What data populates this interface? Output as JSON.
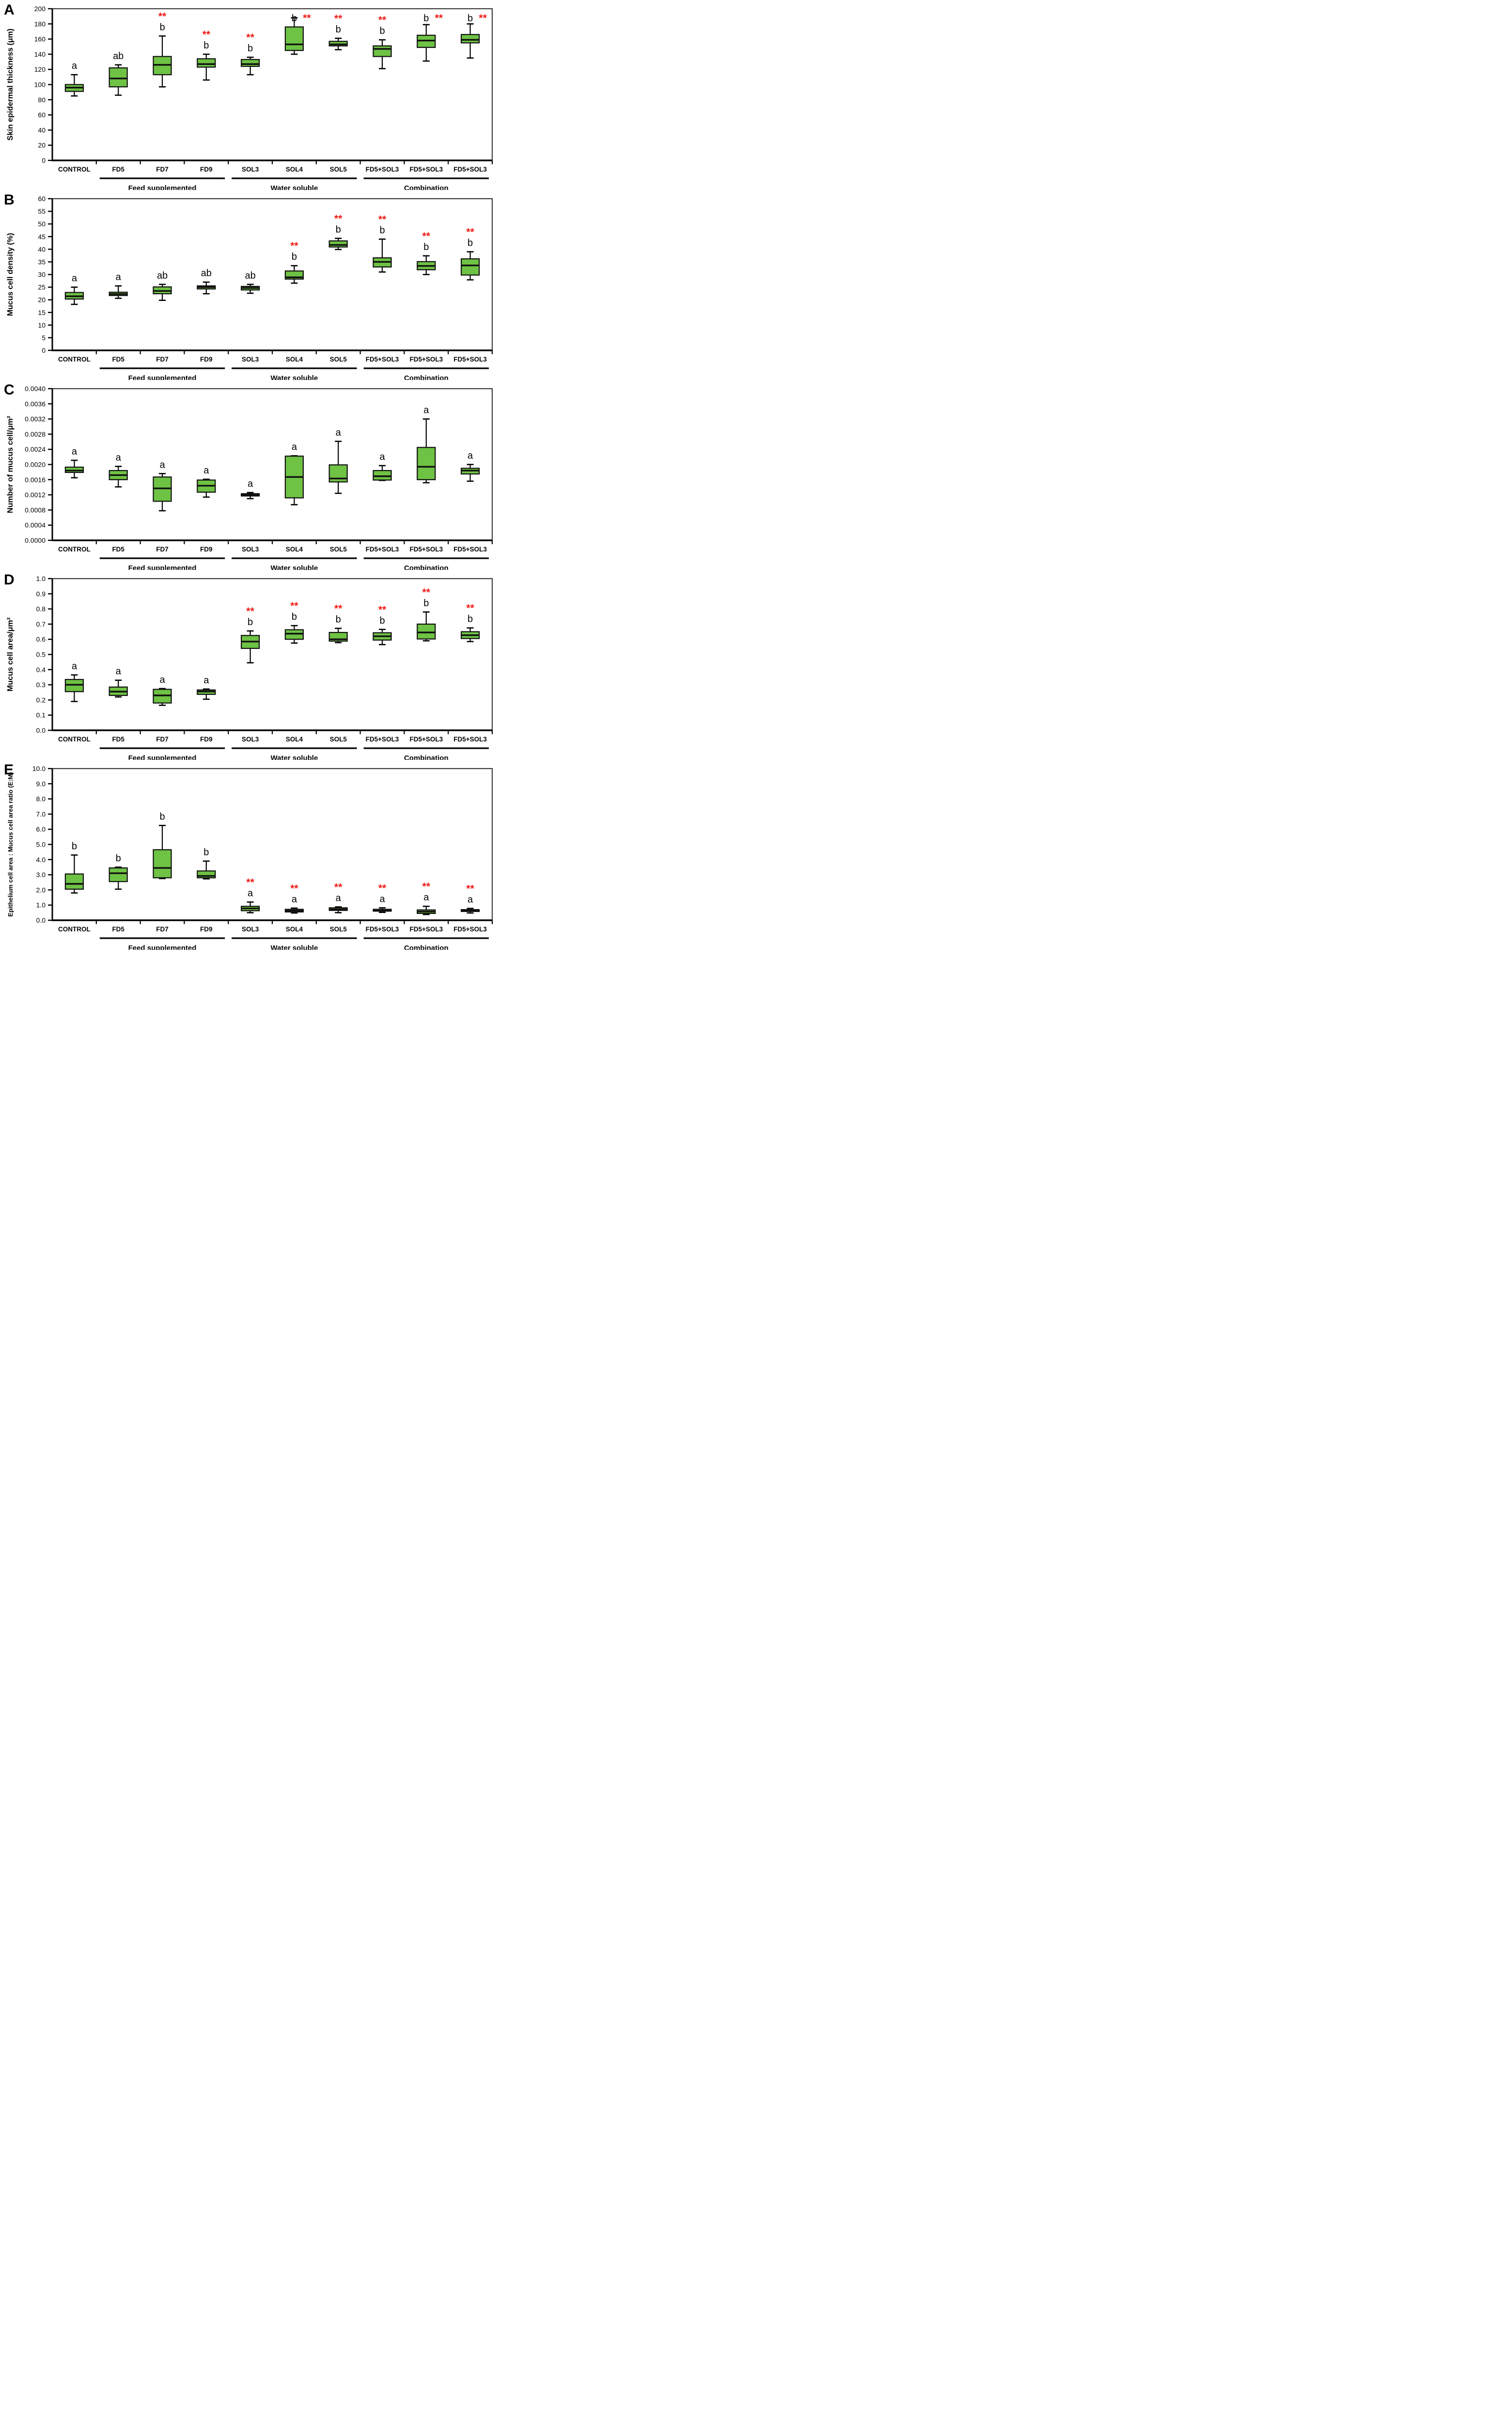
{
  "figure": {
    "panel_count": 5,
    "x_group_labels": [
      "Feed supplemented",
      "Water soluble",
      "Combination"
    ]
  },
  "colors": {
    "box_fill": "#6ec244",
    "box_border": "#101010",
    "frame": "#3d3d3d",
    "axis": "#000000",
    "stars": "#ee1c16",
    "text": "#000000",
    "background": "#ffffff"
  },
  "chart_data": [
    {
      "type": "box",
      "panel_label": "A",
      "ylabel": "Skin epidermal thickness (μm)",
      "ymin": 0,
      "ymax": 200,
      "ystep": 20,
      "ydecimals": 0,
      "grid": false,
      "categories": [
        "CONTROL",
        "FD5",
        "FD7",
        "FD9",
        "SOL3",
        "SOL4",
        "SOL5",
        "FD5+SOL3",
        "FD5+SOL3",
        "FD5+SOL3"
      ],
      "groups": [
        {
          "label": "Feed supplemented",
          "from": 1,
          "to": 3
        },
        {
          "label": "Water soluble",
          "from": 4,
          "to": 6
        },
        {
          "label": "Combination",
          "from": 7,
          "to": 9
        }
      ],
      "boxes": [
        {
          "lo": 85,
          "q1": 91,
          "med": 96,
          "q3": 100,
          "hi": 113,
          "letter": "a",
          "stars": false
        },
        {
          "lo": 86,
          "q1": 97,
          "med": 108,
          "q3": 122,
          "hi": 126,
          "letter": "ab",
          "stars": false
        },
        {
          "lo": 97,
          "q1": 113,
          "med": 126,
          "q3": 137,
          "hi": 164,
          "letter": "b",
          "stars": true
        },
        {
          "lo": 106,
          "q1": 123,
          "med": 127,
          "q3": 134,
          "hi": 140,
          "letter": "b",
          "stars": true
        },
        {
          "lo": 113,
          "q1": 124,
          "med": 127,
          "q3": 133,
          "hi": 136,
          "letter": "b",
          "stars": true
        },
        {
          "lo": 140,
          "q1": 145,
          "med": 153,
          "q3": 176,
          "hi": 188,
          "letter": "b",
          "stars": true,
          "stars_beside": true
        },
        {
          "lo": 146,
          "q1": 151,
          "med": 153,
          "q3": 157,
          "hi": 161,
          "letter": "b",
          "stars": true
        },
        {
          "lo": 121,
          "q1": 137,
          "med": 147,
          "q3": 151,
          "hi": 159,
          "letter": "b",
          "stars": true
        },
        {
          "lo": 131,
          "q1": 149,
          "med": 158,
          "q3": 165,
          "hi": 179,
          "letter": "b",
          "stars": true
        },
        {
          "lo": 135,
          "q1": 155,
          "med": 159,
          "q3": 166,
          "hi": 180,
          "letter": "b",
          "stars": true
        }
      ]
    },
    {
      "type": "box",
      "panel_label": "B",
      "ylabel": "Mucus cell density (%)",
      "ymin": 0,
      "ymax": 60,
      "ystep": 5,
      "ydecimals": 0,
      "grid": false,
      "categories": [
        "CONTROL",
        "FD5",
        "FD7",
        "FD9",
        "SOL3",
        "SOL4",
        "SOL5",
        "FD5+SOL3",
        "FD5+SOL3",
        "FD5+SOL3"
      ],
      "groups": [
        {
          "label": "Feed supplemented",
          "from": 1,
          "to": 3
        },
        {
          "label": "Water soluble",
          "from": 4,
          "to": 6
        },
        {
          "label": "Combination",
          "from": 7,
          "to": 9
        }
      ],
      "boxes": [
        {
          "lo": 18.2,
          "q1": 20.3,
          "med": 21.4,
          "q3": 22.9,
          "hi": 25.0,
          "letter": "a",
          "stars": false
        },
        {
          "lo": 20.6,
          "q1": 21.7,
          "med": 22.3,
          "q3": 23.0,
          "hi": 25.5,
          "letter": "a",
          "stars": false
        },
        {
          "lo": 19.8,
          "q1": 22.4,
          "med": 23.5,
          "q3": 25.1,
          "hi": 26.1,
          "letter": "ab",
          "stars": false
        },
        {
          "lo": 22.4,
          "q1": 24.3,
          "med": 25.0,
          "q3": 25.5,
          "hi": 27.0,
          "letter": "ab",
          "stars": false
        },
        {
          "lo": 22.6,
          "q1": 23.9,
          "med": 24.7,
          "q3": 25.3,
          "hi": 26.1,
          "letter": "ab",
          "stars": false
        },
        {
          "lo": 26.6,
          "q1": 28.2,
          "med": 28.9,
          "q3": 31.4,
          "hi": 33.5,
          "letter": "b",
          "stars": true
        },
        {
          "lo": 39.9,
          "q1": 40.9,
          "med": 41.7,
          "q3": 43.3,
          "hi": 44.3,
          "letter": "b",
          "stars": true
        },
        {
          "lo": 31.0,
          "q1": 33.0,
          "med": 35.0,
          "q3": 36.6,
          "hi": 44.0,
          "letter": "b",
          "stars": true
        },
        {
          "lo": 30.0,
          "q1": 31.9,
          "med": 33.4,
          "q3": 35.1,
          "hi": 37.4,
          "letter": "b",
          "stars": true
        },
        {
          "lo": 27.9,
          "q1": 29.8,
          "med": 33.6,
          "q3": 36.2,
          "hi": 39.0,
          "letter": "b",
          "stars": true
        }
      ]
    },
    {
      "type": "box",
      "panel_label": "C",
      "ylabel": "Number of mucus cell/μm²",
      "ymin": 0,
      "ymax": 0.004,
      "ystep": 0.0004,
      "ydecimals": 4,
      "grid": false,
      "categories": [
        "CONTROL",
        "FD5",
        "FD7",
        "FD9",
        "SOL3",
        "SOL4",
        "SOL5",
        "FD5+SOL3",
        "FD5+SOL3",
        "FD5+SOL3"
      ],
      "groups": [
        {
          "label": "Feed supplemented",
          "from": 1,
          "to": 3
        },
        {
          "label": "Water soluble",
          "from": 4,
          "to": 6
        },
        {
          "label": "Combination",
          "from": 7,
          "to": 9
        }
      ],
      "boxes": [
        {
          "lo": 0.00165,
          "q1": 0.00179,
          "med": 0.00184,
          "q3": 0.00193,
          "hi": 0.00211,
          "letter": "a",
          "stars": false
        },
        {
          "lo": 0.00141,
          "q1": 0.0016,
          "med": 0.00172,
          "q3": 0.00184,
          "hi": 0.00195,
          "letter": "a",
          "stars": false
        },
        {
          "lo": 0.00078,
          "q1": 0.00103,
          "med": 0.00137,
          "q3": 0.00167,
          "hi": 0.00176,
          "letter": "a",
          "stars": false
        },
        {
          "lo": 0.00114,
          "q1": 0.00127,
          "med": 0.00144,
          "q3": 0.00159,
          "hi": 0.00161,
          "letter": "a",
          "stars": false
        },
        {
          "lo": 0.0011,
          "q1": 0.00117,
          "med": 0.0012,
          "q3": 0.00123,
          "hi": 0.00126,
          "letter": "a",
          "stars": false
        },
        {
          "lo": 0.00094,
          "q1": 0.00112,
          "med": 0.00167,
          "q3": 0.00222,
          "hi": 0.00223,
          "letter": "a",
          "stars": false
        },
        {
          "lo": 0.00124,
          "q1": 0.00154,
          "med": 0.00163,
          "q3": 0.00199,
          "hi": 0.00261,
          "letter": "a",
          "stars": false
        },
        {
          "lo": 0.00158,
          "q1": 0.00159,
          "med": 0.00169,
          "q3": 0.00184,
          "hi": 0.00197,
          "letter": "a",
          "stars": false
        },
        {
          "lo": 0.00152,
          "q1": 0.0016,
          "med": 0.00194,
          "q3": 0.00245,
          "hi": 0.0032,
          "letter": "a",
          "stars": false
        },
        {
          "lo": 0.00156,
          "q1": 0.00175,
          "med": 0.00184,
          "q3": 0.0019,
          "hi": 0.002,
          "letter": "a",
          "stars": false
        }
      ]
    },
    {
      "type": "box",
      "panel_label": "D",
      "ylabel": "Mucus cell area/μm²",
      "ymin": 0,
      "ymax": 1.0,
      "ystep": 0.1,
      "ydecimals": 1,
      "grid": false,
      "categories": [
        "CONTROL",
        "FD5",
        "FD7",
        "FD9",
        "SOL3",
        "SOL4",
        "SOL5",
        "FD5+SOL3",
        "FD5+SOL3",
        "FD5+SOL3"
      ],
      "groups": [
        {
          "label": "Feed supplemented",
          "from": 1,
          "to": 3
        },
        {
          "label": "Water soluble",
          "from": 4,
          "to": 6
        },
        {
          "label": "Combination",
          "from": 7,
          "to": 9
        }
      ],
      "boxes": [
        {
          "lo": 0.19,
          "q1": 0.255,
          "med": 0.3,
          "q3": 0.335,
          "hi": 0.365,
          "letter": "a",
          "stars": false
        },
        {
          "lo": 0.22,
          "q1": 0.23,
          "med": 0.255,
          "q3": 0.285,
          "hi": 0.33,
          "letter": "a",
          "stars": false
        },
        {
          "lo": 0.165,
          "q1": 0.18,
          "med": 0.23,
          "q3": 0.27,
          "hi": 0.275,
          "letter": "a",
          "stars": false
        },
        {
          "lo": 0.205,
          "q1": 0.237,
          "med": 0.256,
          "q3": 0.266,
          "hi": 0.272,
          "letter": "a",
          "stars": false
        },
        {
          "lo": 0.445,
          "q1": 0.54,
          "med": 0.585,
          "q3": 0.625,
          "hi": 0.655,
          "letter": "b",
          "stars": true
        },
        {
          "lo": 0.575,
          "q1": 0.6,
          "med": 0.637,
          "q3": 0.663,
          "hi": 0.69,
          "letter": "b",
          "stars": true
        },
        {
          "lo": 0.578,
          "q1": 0.588,
          "med": 0.6,
          "q3": 0.645,
          "hi": 0.672,
          "letter": "b",
          "stars": true
        },
        {
          "lo": 0.565,
          "q1": 0.595,
          "med": 0.62,
          "q3": 0.643,
          "hi": 0.665,
          "letter": "b",
          "stars": true
        },
        {
          "lo": 0.59,
          "q1": 0.602,
          "med": 0.645,
          "q3": 0.7,
          "hi": 0.78,
          "letter": "b",
          "stars": true
        },
        {
          "lo": 0.585,
          "q1": 0.605,
          "med": 0.627,
          "q3": 0.65,
          "hi": 0.675,
          "letter": "b",
          "stars": true
        }
      ]
    },
    {
      "type": "box",
      "panel_label": "E",
      "ylabel": "Epithelium cell area : Mucus cell area ratio (E:M)",
      "ymin": 0,
      "ymax": 10.0,
      "ystep": 1.0,
      "ydecimals": 1,
      "grid": false,
      "categories": [
        "CONTROL",
        "FD5",
        "FD7",
        "FD9",
        "SOL3",
        "SOL4",
        "SOL5",
        "FD5+SOL3",
        "FD5+SOL3",
        "FD5+SOL3"
      ],
      "groups": [
        {
          "label": "Feed supplemented",
          "from": 1,
          "to": 3
        },
        {
          "label": "Water soluble",
          "from": 4,
          "to": 6
        },
        {
          "label": "Combination",
          "from": 7,
          "to": 9
        }
      ],
      "boxes": [
        {
          "lo": 1.8,
          "q1": 2.05,
          "med": 2.4,
          "q3": 3.05,
          "hi": 4.3,
          "letter": "b",
          "stars": false
        },
        {
          "lo": 2.05,
          "q1": 2.55,
          "med": 3.1,
          "q3": 3.45,
          "hi": 3.5,
          "letter": "b",
          "stars": false
        },
        {
          "lo": 2.75,
          "q1": 2.8,
          "med": 3.45,
          "q3": 4.65,
          "hi": 6.25,
          "letter": "b",
          "stars": false
        },
        {
          "lo": 2.73,
          "q1": 2.8,
          "med": 2.92,
          "q3": 3.25,
          "hi": 3.9,
          "letter": "b",
          "stars": false
        },
        {
          "lo": 0.5,
          "q1": 0.63,
          "med": 0.78,
          "q3": 0.92,
          "hi": 1.2,
          "letter": "a",
          "stars": true
        },
        {
          "lo": 0.48,
          "q1": 0.55,
          "med": 0.63,
          "q3": 0.72,
          "hi": 0.8,
          "letter": "a",
          "stars": true
        },
        {
          "lo": 0.5,
          "q1": 0.65,
          "med": 0.72,
          "q3": 0.82,
          "hi": 0.88,
          "letter": "a",
          "stars": true
        },
        {
          "lo": 0.52,
          "q1": 0.6,
          "med": 0.65,
          "q3": 0.72,
          "hi": 0.82,
          "letter": "a",
          "stars": true
        },
        {
          "lo": 0.38,
          "q1": 0.45,
          "med": 0.57,
          "q3": 0.68,
          "hi": 0.92,
          "letter": "a",
          "stars": true
        },
        {
          "lo": 0.48,
          "q1": 0.58,
          "med": 0.65,
          "q3": 0.7,
          "hi": 0.78,
          "letter": "a",
          "stars": true
        }
      ]
    }
  ]
}
